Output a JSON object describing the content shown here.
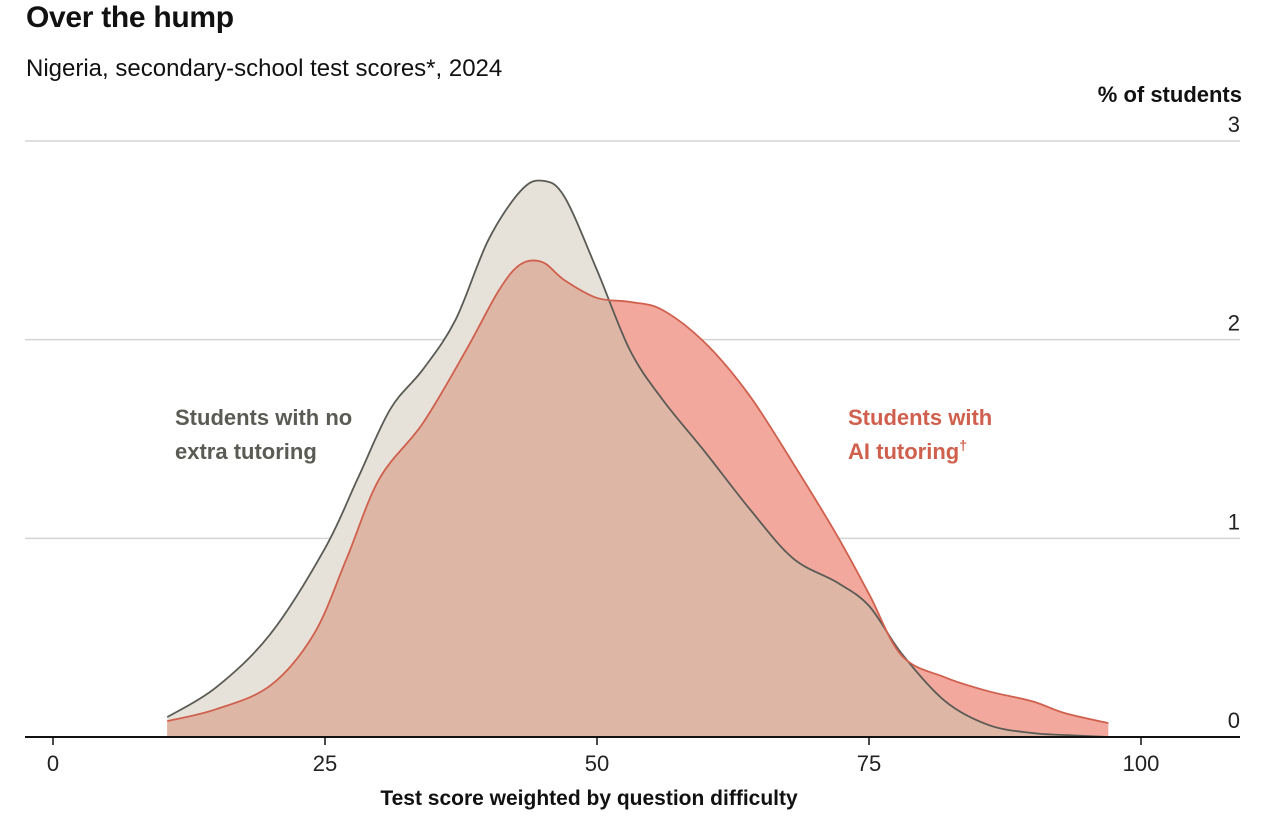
{
  "title": "Over the hump",
  "subtitle": "Nigeria, secondary-school test scores*, 2024",
  "chart_data": {
    "type": "area",
    "title": "Over the hump",
    "subtitle": "Nigeria, secondary-school test scores*, 2024",
    "xlabel": "Test score weighted by question difficulty",
    "ylabel": "% of students",
    "xlim": [
      -3,
      108
    ],
    "ylim": [
      0,
      3
    ],
    "x_ticks": [
      0,
      25,
      50,
      75,
      100
    ],
    "y_ticks": [
      0,
      1,
      2,
      3
    ],
    "grid": true,
    "colors": {
      "no_tutoring_fill": "#e6e2da",
      "no_tutoring_line": "#5b5b55",
      "ai_fill": "#f2a89c",
      "ai_line": "#d0604e",
      "overlap_fill": "#deb6a5",
      "grid": "#d4d4d4",
      "axis": "#111111"
    },
    "series": [
      {
        "name": "Students with no extra tutoring",
        "label_lines": [
          "Students with no",
          "extra tutoring"
        ],
        "x": [
          10.5,
          15,
          20,
          25,
          28,
          31,
          34,
          37,
          40,
          43,
          45,
          47,
          50,
          53,
          56,
          60,
          64,
          68,
          72,
          75,
          78,
          82,
          86,
          90,
          93,
          97
        ],
        "values": [
          0.1,
          0.25,
          0.52,
          0.95,
          1.3,
          1.65,
          1.85,
          2.1,
          2.5,
          2.75,
          2.8,
          2.72,
          2.35,
          1.95,
          1.7,
          1.43,
          1.15,
          0.9,
          0.78,
          0.66,
          0.42,
          0.18,
          0.06,
          0.02,
          0.01,
          0.0
        ]
      },
      {
        "name": "Students with AI tutoring",
        "label_lines": [
          "Students with",
          "AI tutoring"
        ],
        "footnote_mark": "†",
        "x": [
          10.5,
          15,
          20,
          24,
          27,
          30,
          34,
          38,
          41,
          43,
          45,
          47,
          50,
          53,
          56,
          60,
          64,
          68,
          72,
          75,
          78,
          82,
          86,
          90,
          93,
          97
        ],
        "values": [
          0.08,
          0.14,
          0.26,
          0.52,
          0.9,
          1.3,
          1.58,
          1.95,
          2.25,
          2.38,
          2.39,
          2.3,
          2.21,
          2.19,
          2.15,
          1.98,
          1.72,
          1.38,
          1.02,
          0.72,
          0.41,
          0.3,
          0.23,
          0.18,
          0.12,
          0.07
        ]
      }
    ]
  }
}
